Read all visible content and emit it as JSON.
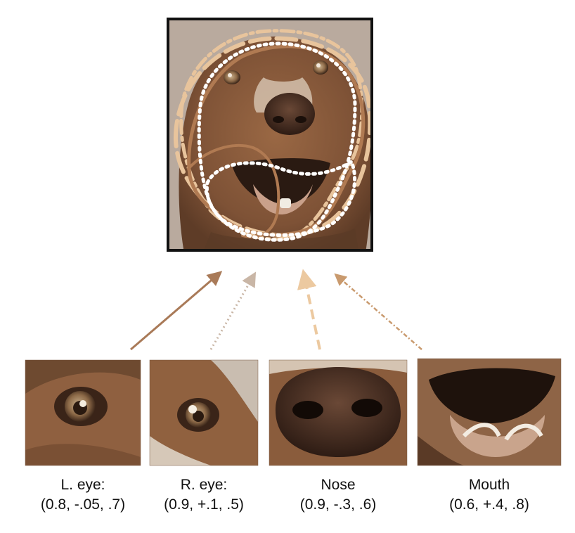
{
  "colors": {
    "background": "#ffffff",
    "frame": "#111111",
    "fur": "#8a5a3a",
    "contour_brown": "#b07a52",
    "contour_peach": "#e8c49c",
    "contour_white": "#ffffff",
    "arrow_solid": "#a97a58",
    "arrow_dotted": "#c9b6a6",
    "arrow_dashed": "#ecc9a0",
    "arrow_dash_dot": "#c99a6e"
  },
  "main_image": {
    "subject": "dog-face-with-part-contours"
  },
  "parts": [
    {
      "id": "left-eye",
      "name": "L. eye:",
      "params": "(0.8, -.05, .7)",
      "arrow_style": "solid"
    },
    {
      "id": "right-eye",
      "name": "R. eye:",
      "params": "(0.9, +.1, .5)",
      "arrow_style": "dotted"
    },
    {
      "id": "nose",
      "name": "Nose",
      "params": "(0.9, -.3, .6)",
      "arrow_style": "dashed"
    },
    {
      "id": "mouth",
      "name": "Mouth",
      "params": "(0.6, +.4, .8)",
      "arrow_style": "dash-dot"
    }
  ]
}
